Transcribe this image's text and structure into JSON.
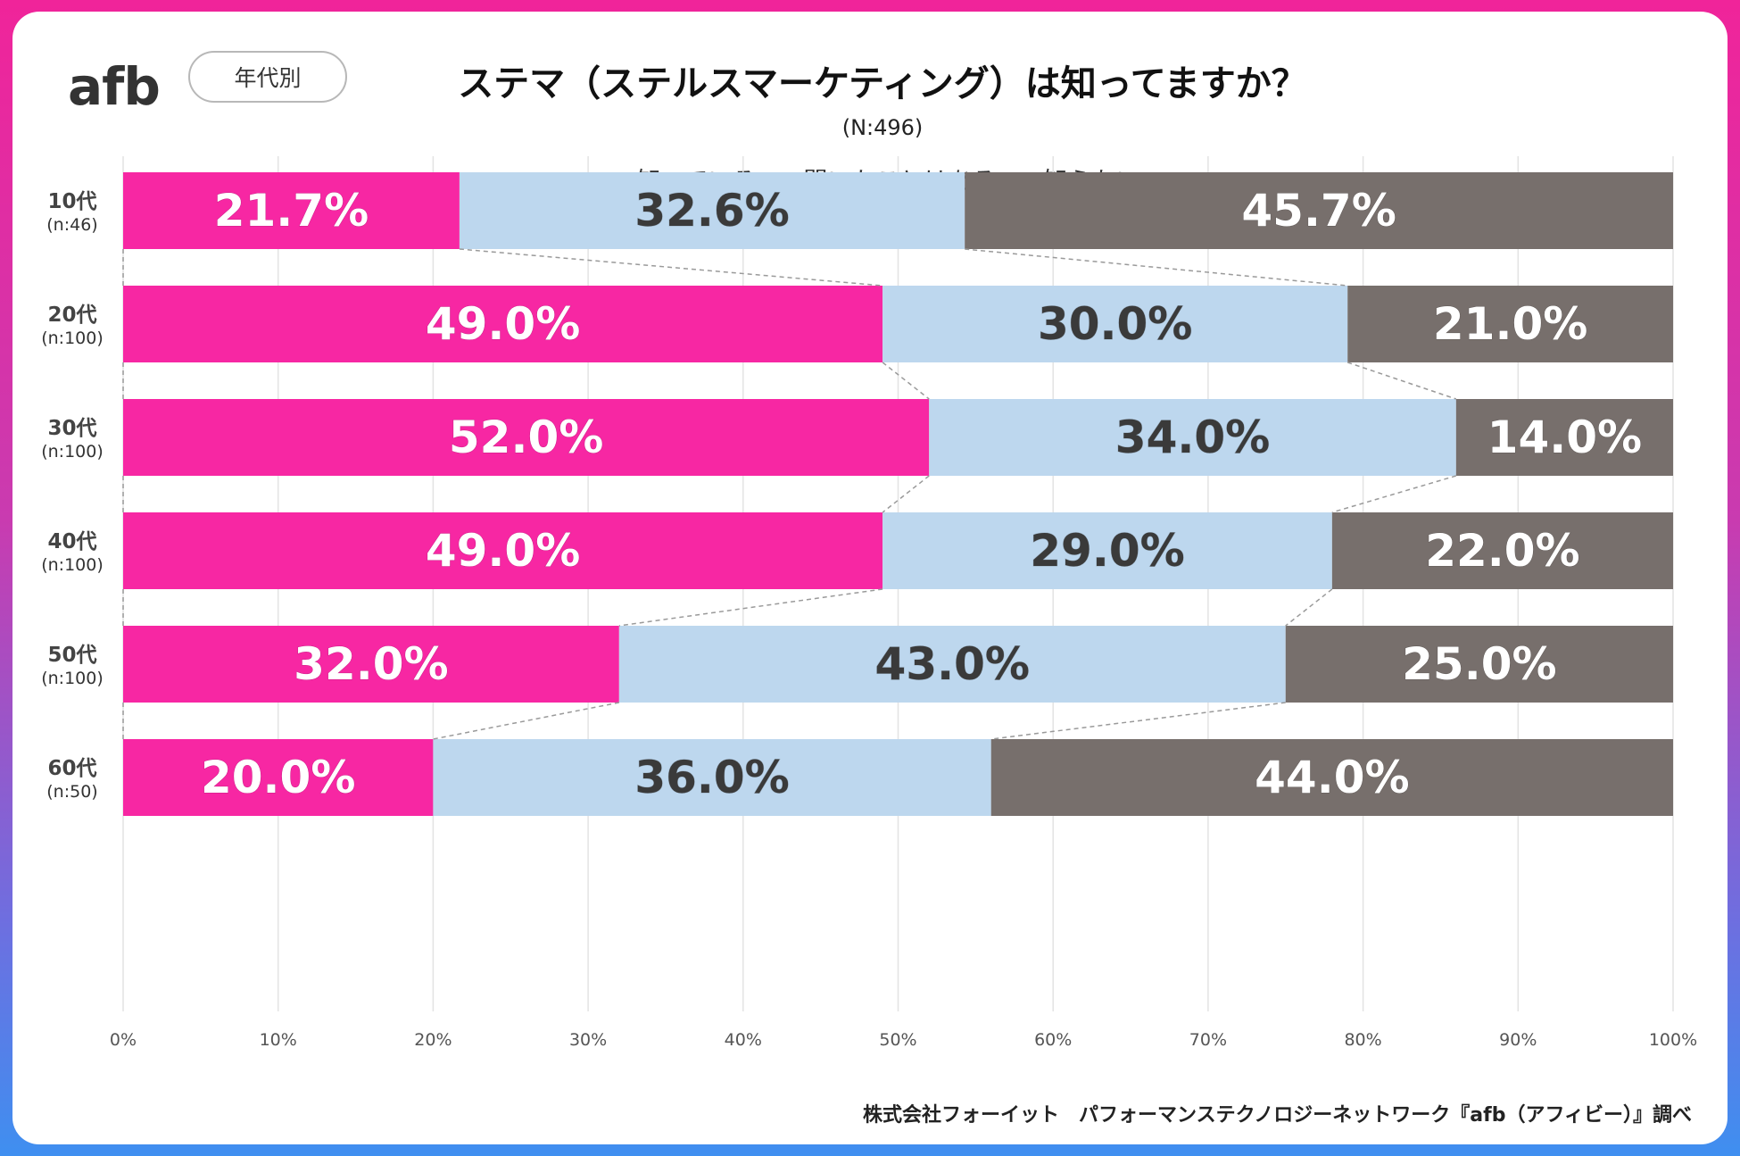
{
  "header": {
    "logo_text": "afb",
    "pill_label": "年代別",
    "title": "ステマ（ステルスマーケティング）は知ってますか？",
    "subtitle": "(N:496)"
  },
  "footer": {
    "credit": "株式会社フォーイット　パフォーマンステクノロジーネットワーク『afb（アフィビー）』調べ"
  },
  "colors": {
    "know": "#f727a3",
    "heard": "#bdd7ee",
    "dont_know": "#776f6c",
    "label_dark": "#3a3a3a",
    "label_light": "#ffffff"
  },
  "chart_data": {
    "type": "bar",
    "orientation": "horizontal",
    "stacked": "100%",
    "title": "ステマ（ステルスマーケティング）は知ってますか？",
    "subtitle": "(N:496)",
    "categories": [
      "10代",
      "20代",
      "30代",
      "40代",
      "50代",
      "60代"
    ],
    "category_sublabels": [
      "(n:46)",
      "(n:100)",
      "(n:100)",
      "(n:100)",
      "(n:100)",
      "(n:50)"
    ],
    "series": [
      {
        "name": "知っている",
        "values": [
          21.7,
          49.0,
          52.0,
          49.0,
          32.0,
          20.0
        ]
      },
      {
        "name": "聞いたことはある",
        "values": [
          32.6,
          30.0,
          34.0,
          29.0,
          43.0,
          36.0
        ]
      },
      {
        "name": "知らない",
        "values": [
          45.7,
          21.0,
          14.0,
          22.0,
          25.0,
          44.0
        ]
      }
    ],
    "data_labels": [
      [
        "21.7%",
        "49.0%",
        "52.0%",
        "49.0%",
        "32.0%",
        "20.0%"
      ],
      [
        "32.6%",
        "30.0%",
        "34.0%",
        "29.0%",
        "43.0%",
        "36.0%"
      ],
      [
        "45.7%",
        "21.0%",
        "14.0%",
        "22.0%",
        "25.0%",
        "44.0%"
      ]
    ],
    "xlim": [
      0,
      100
    ],
    "xticks": [
      "0%",
      "10%",
      "20%",
      "30%",
      "40%",
      "50%",
      "60%",
      "70%",
      "80%",
      "90%",
      "100%"
    ],
    "grid": true,
    "legend_position": "top",
    "series_lines": true
  }
}
